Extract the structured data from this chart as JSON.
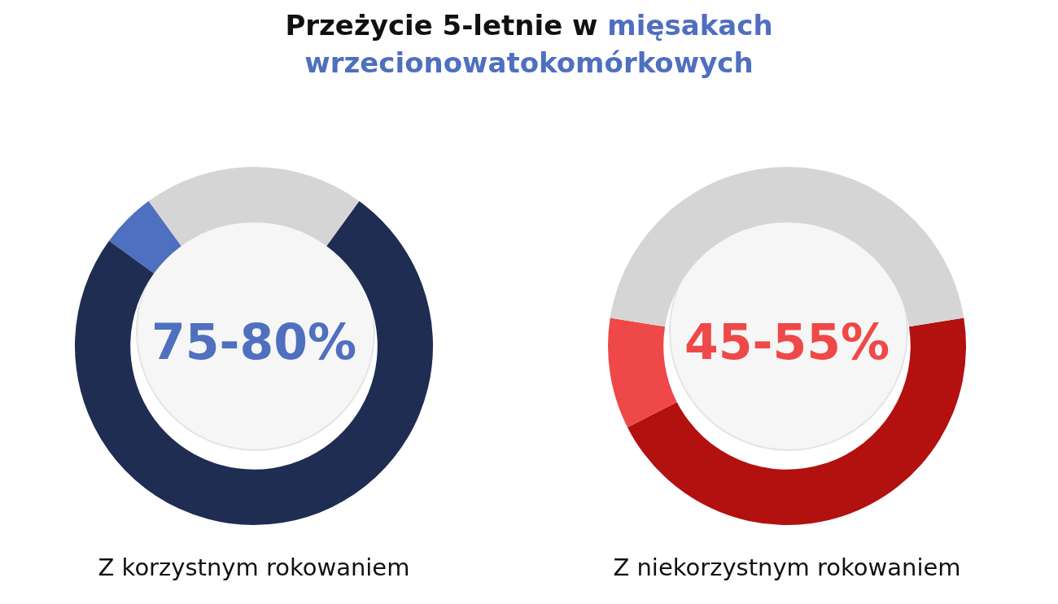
{
  "chart_data": [
    {
      "type": "donut",
      "title": "Przeżycie 5-letnie w mięsakach wrzecionowatokomórkowych",
      "xlabel": "Z korzystnym rokowaniem",
      "categories": [
        null,
        null,
        null
      ],
      "values": [
        75,
        5,
        20
      ],
      "colors": [
        "#1f2d52",
        "#4f6fbf",
        "#d5d5d5"
      ],
      "annotations": [
        "75-80%"
      ],
      "legend": false
    },
    {
      "type": "donut",
      "xlabel": "Z niekorzystnym rokowaniem",
      "categories": [
        null,
        null,
        null
      ],
      "values": [
        45,
        10,
        45
      ],
      "colors": [
        "#b31010",
        "#ef4848",
        "#d5d5d5"
      ],
      "annotations": [
        "45-55%"
      ],
      "legend": false
    }
  ]
}
